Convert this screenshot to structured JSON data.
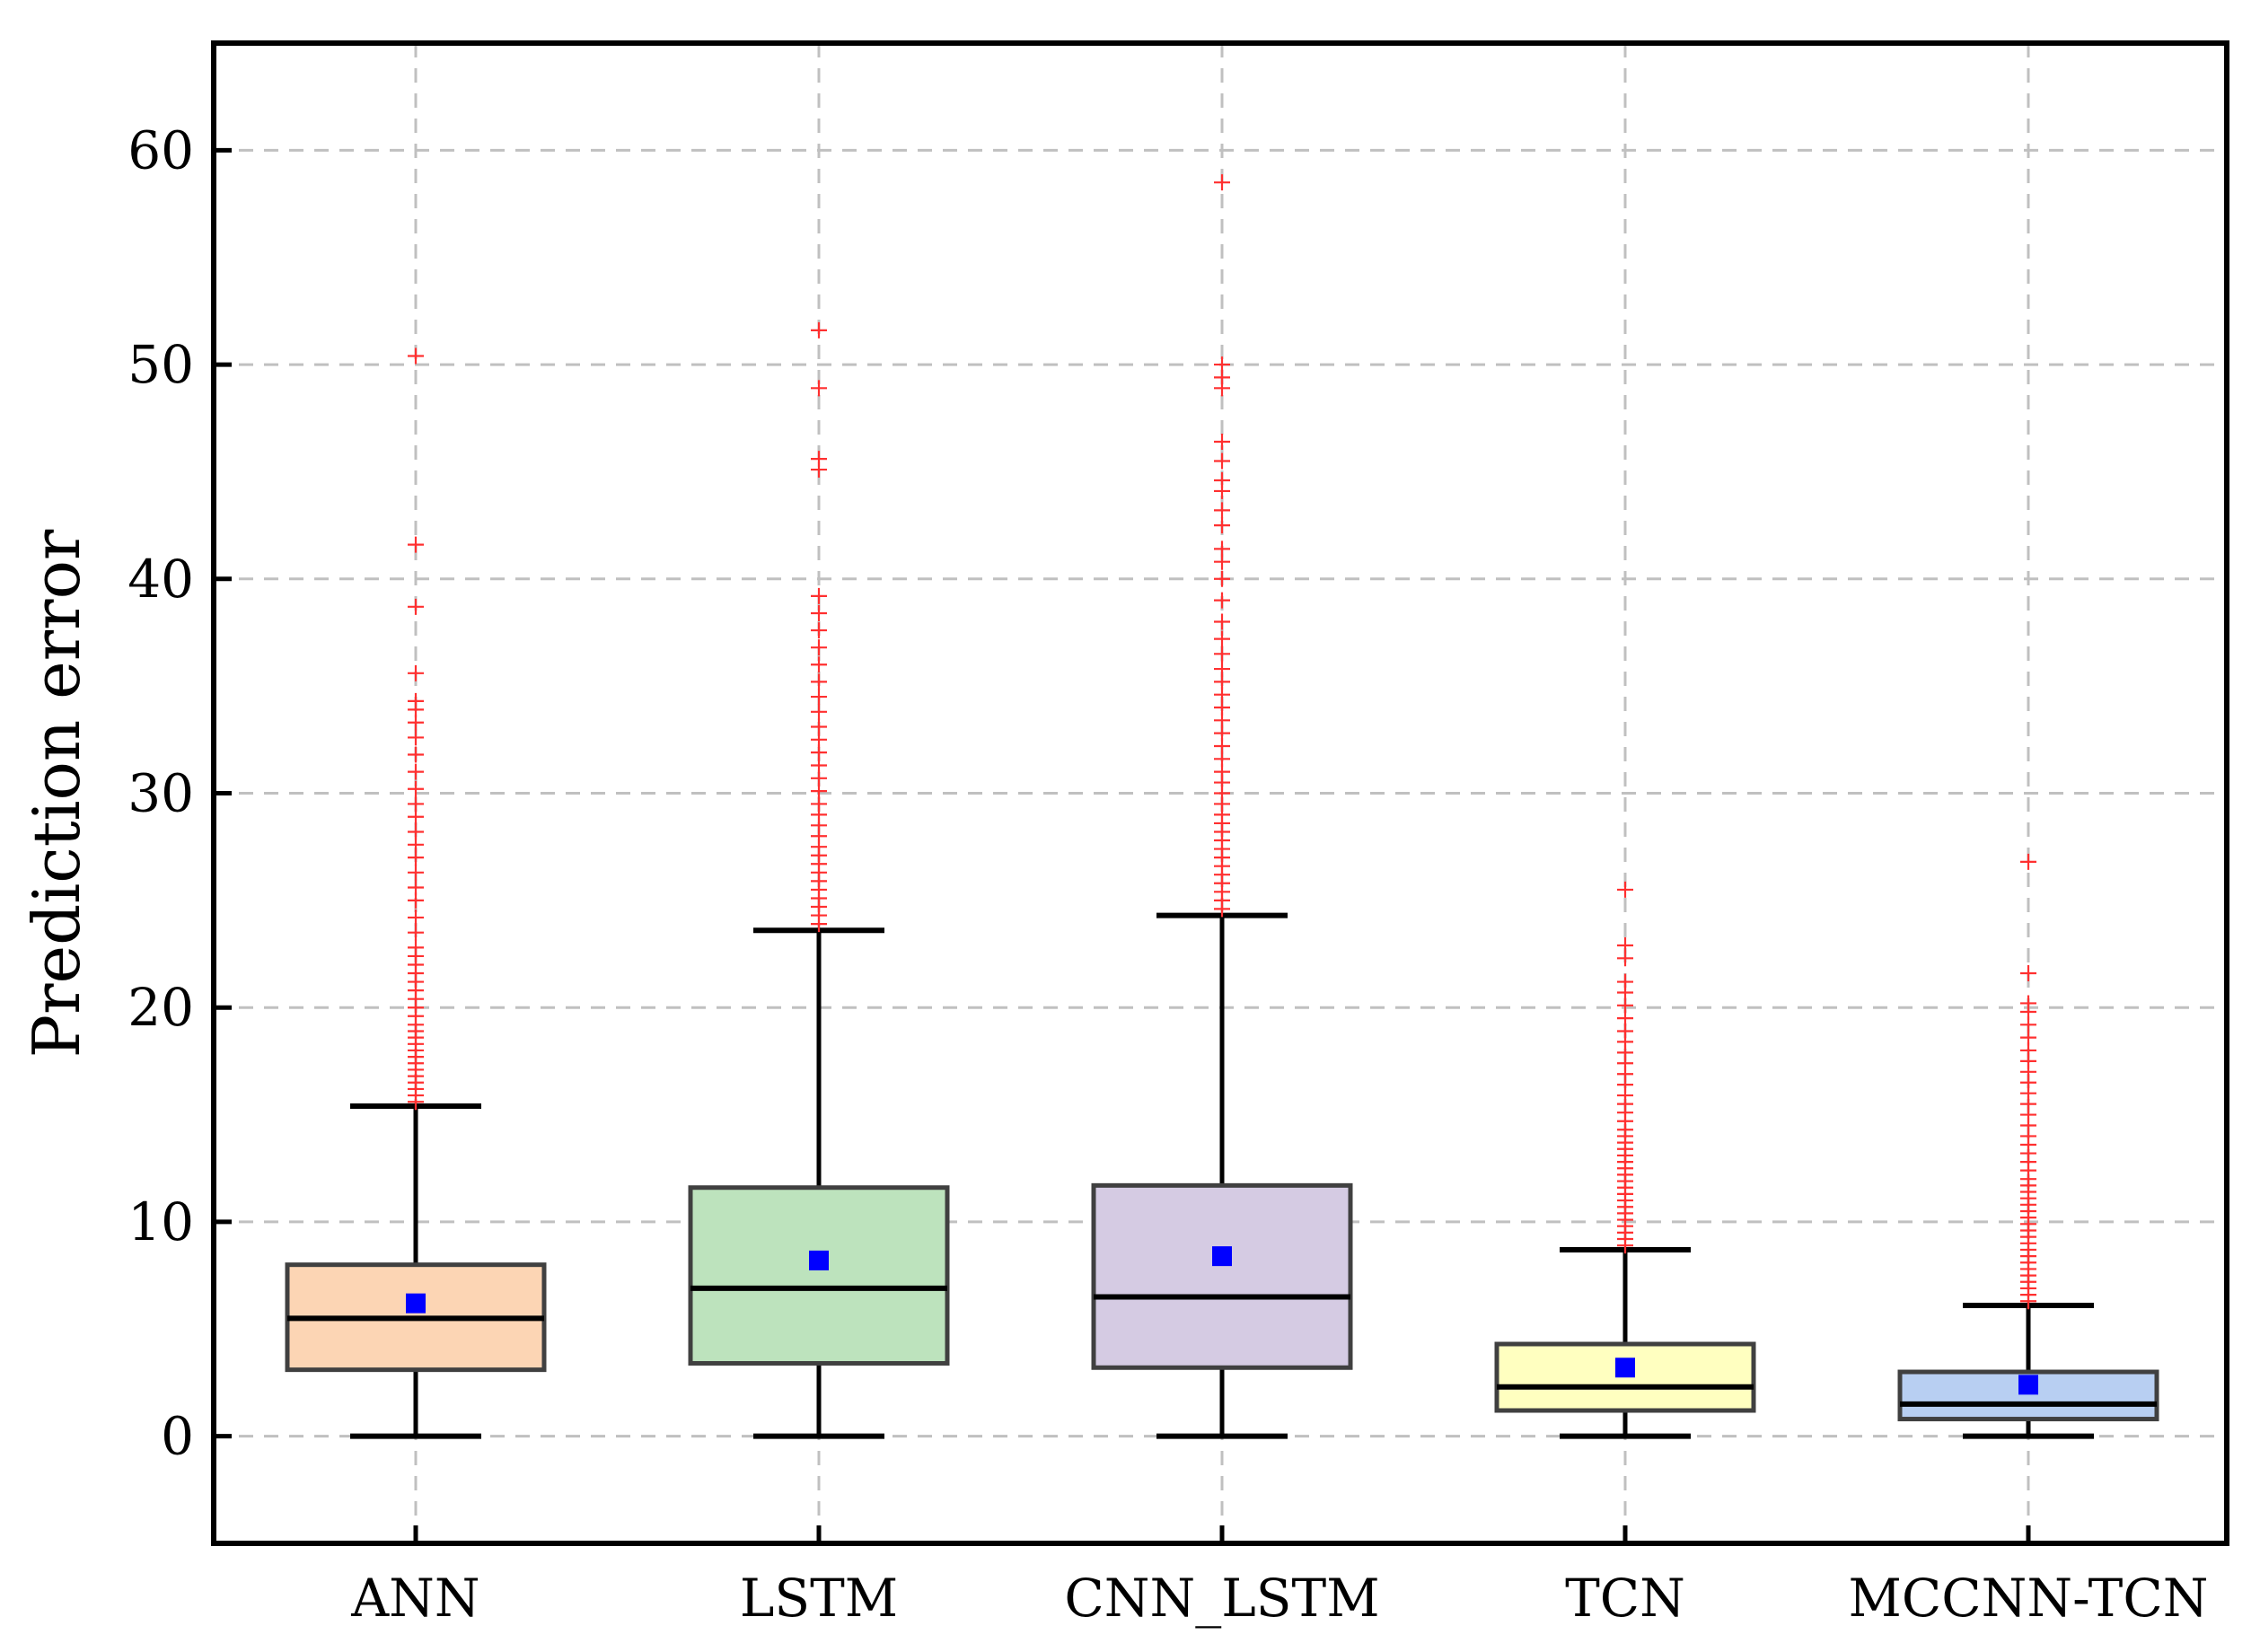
{
  "chart_data": {
    "type": "box",
    "xlabel": "",
    "ylabel": "Prediction error",
    "ylim": [
      -5,
      65
    ],
    "yticks": [
      0,
      10,
      20,
      30,
      40,
      50,
      60
    ],
    "grid": true,
    "categories": [
      "ANN",
      "LSTM",
      "CNN_LSTM",
      "TCN",
      "MCCNN-TCN"
    ],
    "boxes": [
      {
        "name": "ANN",
        "color": "#fcd5b4",
        "min": 0,
        "q1": 3.1,
        "median": 5.5,
        "q3": 8.0,
        "max": 15.4,
        "mean": 6.2,
        "outliers": [
          15.6,
          15.9,
          16.2,
          16.5,
          16.8,
          17.1,
          17.4,
          17.7,
          18.0,
          18.3,
          18.6,
          18.9,
          19.2,
          19.6,
          20.0,
          20.4,
          20.8,
          21.2,
          21.6,
          22.0,
          22.4,
          22.8,
          23.5,
          24.2,
          25.0,
          25.6,
          26.3,
          27.0,
          27.6,
          28.2,
          28.9,
          29.5,
          30.2,
          31.0,
          31.8,
          32.6,
          33.3,
          33.9,
          34.3,
          35.6,
          38.7,
          41.6,
          50.4
        ]
      },
      {
        "name": "LSTM",
        "color": "#bde3bd",
        "min": 0,
        "q1": 3.4,
        "median": 6.9,
        "q3": 11.6,
        "max": 23.6,
        "mean": 8.2,
        "outliers": [
          23.9,
          24.3,
          24.7,
          25.1,
          25.5,
          25.9,
          26.3,
          26.7,
          27.1,
          27.5,
          28.0,
          28.5,
          29.0,
          29.5,
          30.1,
          30.7,
          31.3,
          31.9,
          32.5,
          33.1,
          33.8,
          34.5,
          35.2,
          36.0,
          36.8,
          37.6,
          38.4,
          39.2,
          45.1,
          45.6,
          48.9,
          51.6
        ]
      },
      {
        "name": "CNN_LSTM",
        "color": "#d5cbe3",
        "min": 0,
        "q1": 3.2,
        "median": 6.5,
        "q3": 11.7,
        "max": 24.3,
        "mean": 8.4,
        "outliers": [
          24.6,
          25.0,
          25.4,
          25.8,
          26.2,
          26.6,
          27.0,
          27.4,
          27.8,
          28.2,
          28.6,
          29.0,
          29.5,
          30.0,
          30.5,
          31.0,
          31.6,
          32.2,
          32.8,
          33.4,
          34.0,
          34.6,
          35.2,
          35.8,
          36.5,
          37.2,
          38.0,
          39.0,
          40.0,
          40.8,
          41.4,
          42.5,
          43.2,
          44.1,
          44.6,
          45.5,
          46.4,
          48.9,
          49.4,
          50.0,
          58.5
        ]
      },
      {
        "name": "TCN",
        "color": "#ffffc0",
        "min": 0,
        "q1": 1.2,
        "median": 2.3,
        "q3": 4.3,
        "max": 8.7,
        "mean": 3.2,
        "outliers": [
          8.9,
          9.2,
          9.5,
          9.8,
          10.1,
          10.4,
          10.7,
          11.0,
          11.3,
          11.6,
          11.9,
          12.2,
          12.5,
          12.8,
          13.1,
          13.4,
          13.7,
          14.0,
          14.3,
          14.7,
          15.1,
          15.5,
          15.9,
          16.4,
          16.9,
          17.4,
          17.9,
          18.4,
          18.9,
          19.5,
          20.1,
          20.7,
          21.2,
          22.3,
          22.9,
          25.5
        ]
      },
      {
        "name": "MCCNN-TCN",
        "color": "#b8cff2",
        "min": 0,
        "q1": 0.8,
        "median": 1.5,
        "q3": 3.0,
        "max": 6.1,
        "mean": 2.4,
        "outliers": [
          6.3,
          6.6,
          6.9,
          7.2,
          7.5,
          7.8,
          8.1,
          8.4,
          8.7,
          9.0,
          9.3,
          9.6,
          9.9,
          10.2,
          10.5,
          10.8,
          11.1,
          11.4,
          11.7,
          12.0,
          12.4,
          12.8,
          13.2,
          13.6,
          14.0,
          14.5,
          15.0,
          15.5,
          16.0,
          16.5,
          17.0,
          17.5,
          18.0,
          18.6,
          19.2,
          19.8,
          20.2,
          21.6,
          26.8
        ]
      }
    ],
    "colors": {
      "whisker": "#000000",
      "box_edge": "#404040",
      "mean_marker": "#0000ff",
      "outlier": "#ff3030"
    }
  }
}
